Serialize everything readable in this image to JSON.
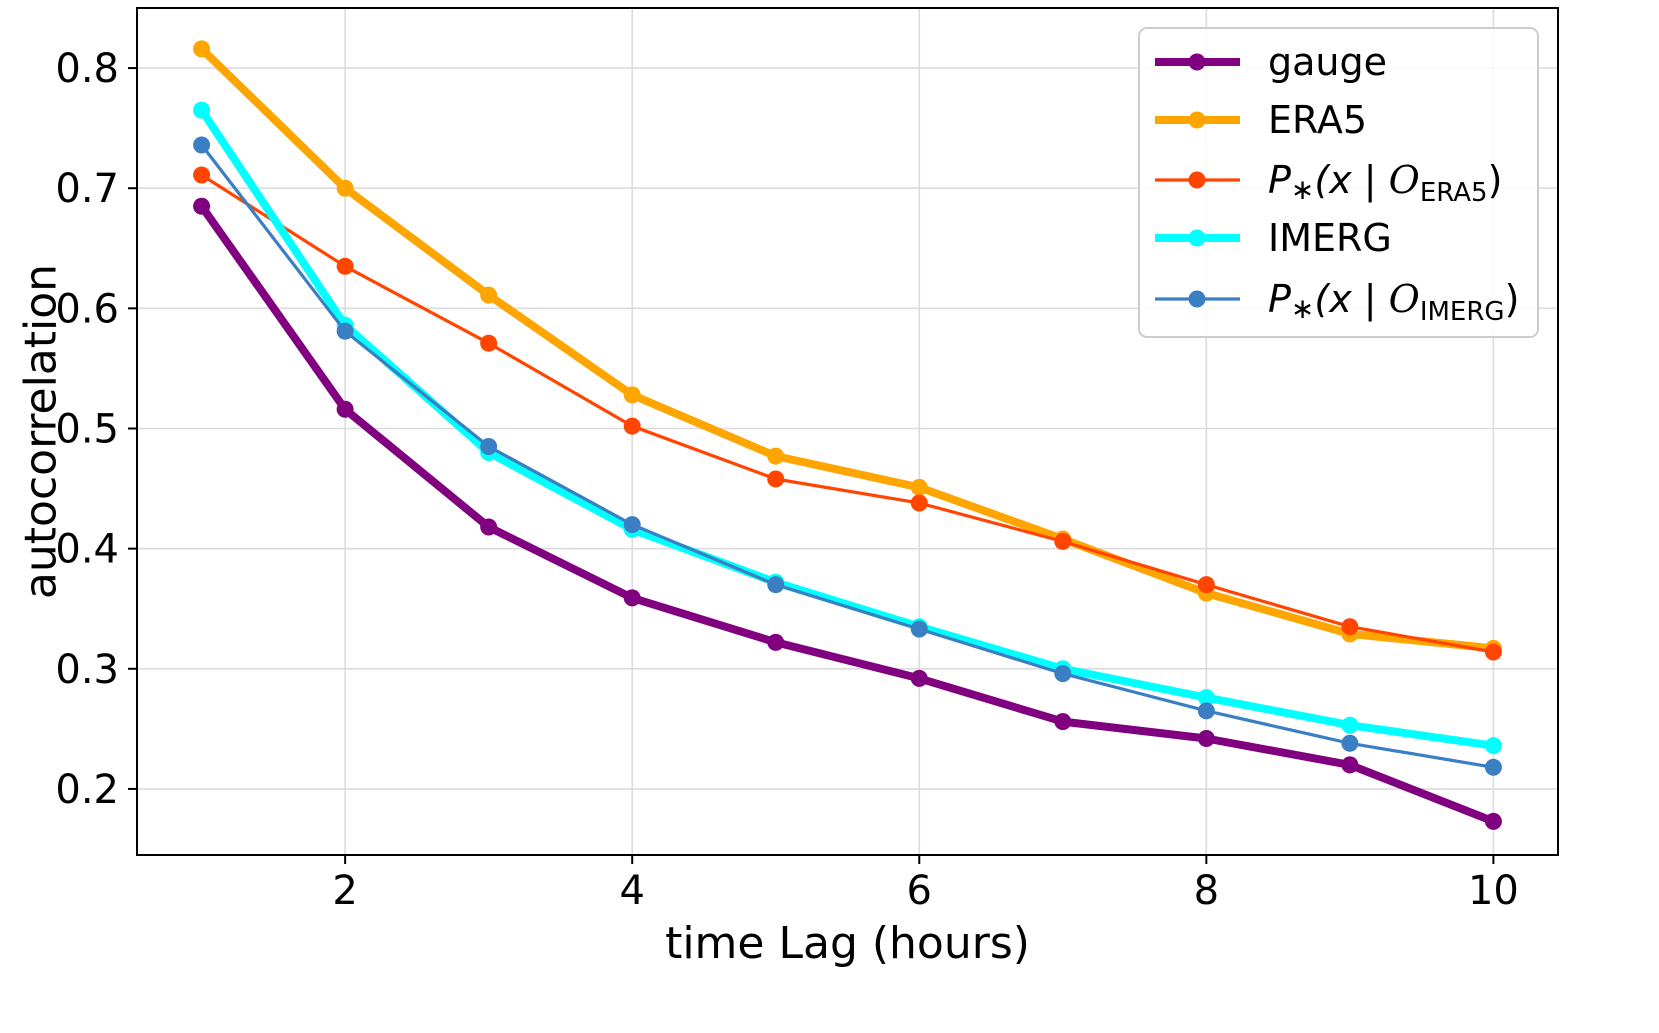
{
  "chart_data": {
    "type": "line",
    "title": "",
    "xlabel": "time Lag (hours)",
    "ylabel": "autocorrelation",
    "xlim": [
      0.55,
      10.45
    ],
    "ylim": [
      0.145,
      0.85
    ],
    "xticks": [
      2,
      4,
      6,
      8,
      10
    ],
    "xtick_labels": [
      "2",
      "4",
      "6",
      "8",
      "10"
    ],
    "yticks": [
      0.2,
      0.3,
      0.4,
      0.5,
      0.6,
      0.7,
      0.8
    ],
    "ytick_labels": [
      "0.2",
      "0.3",
      "0.4",
      "0.5",
      "0.6",
      "0.7",
      "0.8"
    ],
    "grid": true,
    "legend_position": "top-right",
    "x": [
      1,
      2,
      3,
      4,
      5,
      6,
      7,
      8,
      9,
      10
    ],
    "series": [
      {
        "key": "gauge",
        "legend": {
          "main": "gauge"
        },
        "color": "#800080",
        "thick": true,
        "values": [
          0.685,
          0.516,
          0.418,
          0.359,
          0.322,
          0.292,
          0.256,
          0.242,
          0.22,
          0.173
        ]
      },
      {
        "key": "era5",
        "legend": {
          "main": "ERA5"
        },
        "color": "#FFA500",
        "thick": true,
        "values": [
          0.816,
          0.7,
          0.611,
          0.528,
          0.477,
          0.451,
          0.408,
          0.363,
          0.329,
          0.317
        ]
      },
      {
        "key": "p-era5",
        "legend": {
          "p": "P",
          "star": "∗",
          "open": "(x | ",
          "script": "O",
          "sub": "ERA5",
          "close": ")"
        },
        "color": "#FF4500",
        "thick": false,
        "values": [
          0.711,
          0.635,
          0.571,
          0.502,
          0.458,
          0.438,
          0.406,
          0.37,
          0.335,
          0.314
        ]
      },
      {
        "key": "imerg",
        "legend": {
          "main": "IMERG"
        },
        "color": "#00FFFF",
        "thick": true,
        "values": [
          0.765,
          0.586,
          0.48,
          0.416,
          0.372,
          0.335,
          0.3,
          0.276,
          0.253,
          0.236
        ]
      },
      {
        "key": "p-imerg",
        "legend": {
          "p": "P",
          "star": "∗",
          "open": "(x | ",
          "script": "O",
          "sub": "IMERG",
          "close": ")"
        },
        "color": "#3A7FC4",
        "thick": false,
        "values": [
          0.736,
          0.581,
          0.485,
          0.42,
          0.37,
          0.333,
          0.296,
          0.265,
          0.238,
          0.218
        ]
      }
    ]
  }
}
